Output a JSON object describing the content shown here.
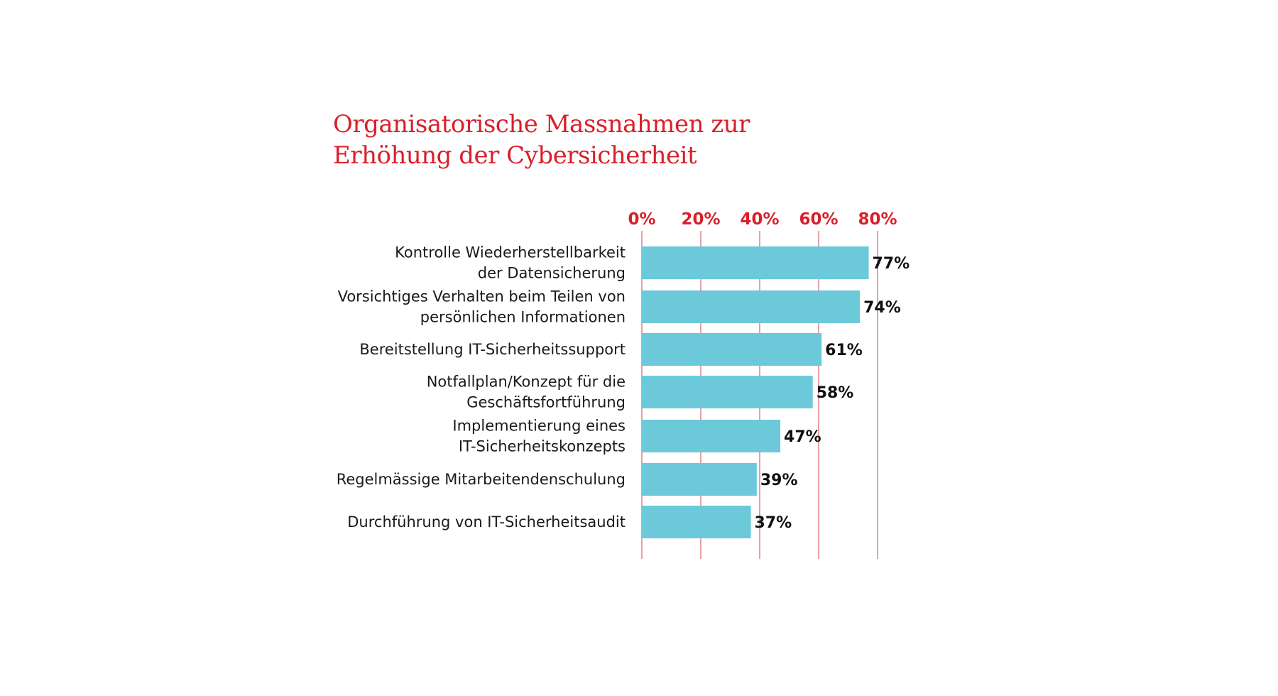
{
  "chart_data": {
    "type": "bar",
    "orientation": "horizontal",
    "title_lines": [
      "Organisatorische Massnahmen zur",
      "Erhöhung der Cybersicherheit"
    ],
    "categories": [
      [
        "Kontrolle Wiederherstellbarkeit",
        "der Datensicherung"
      ],
      [
        "Vorsichtiges Verhalten beim Teilen von",
        "persönlichen Informationen"
      ],
      [
        "Bereitstellung IT-Sicherheitssupport"
      ],
      [
        "Notfallplan/Konzept für die",
        "Geschäftsfortführung"
      ],
      [
        "Implementierung eines",
        "IT-Sicherheitskonzepts"
      ],
      [
        "Regelmässige Mitarbeitendenschulung"
      ],
      [
        "Durchführung von IT-Sicherheitsaudit"
      ]
    ],
    "values": [
      77,
      74,
      61,
      58,
      47,
      39,
      37
    ],
    "value_labels": [
      "77%",
      "74%",
      "61%",
      "58%",
      "47%",
      "39%",
      "37%"
    ],
    "x_ticks": [
      0,
      20,
      40,
      60,
      80
    ],
    "x_tick_labels": [
      "0%",
      "20%",
      "40%",
      "60%",
      "80%"
    ],
    "xlim": [
      0,
      80
    ],
    "axis_position": "top",
    "grid": true,
    "colors": {
      "bar": "#6cc9da",
      "grid": "#e8a0a4",
      "title": "#d8202a",
      "tick_label": "#d8202a",
      "text": "#1a1a1a"
    }
  }
}
